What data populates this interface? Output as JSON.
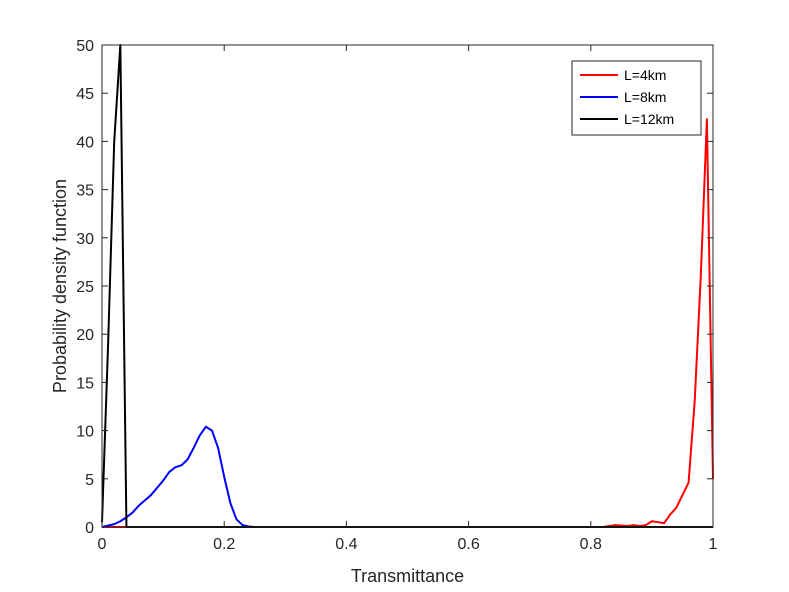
{
  "chart_data": {
    "type": "line",
    "xlabel": "Transmittance",
    "ylabel": "Probability density function",
    "xlim": [
      0,
      1
    ],
    "ylim": [
      0,
      50
    ],
    "xticks": [
      0,
      0.2,
      0.4,
      0.6,
      0.8,
      1
    ],
    "xtick_labels": [
      "0",
      "0.2",
      "0.4",
      "0.6",
      "0.8",
      "1"
    ],
    "yticks": [
      0,
      5,
      10,
      15,
      20,
      25,
      30,
      35,
      40,
      45,
      50
    ],
    "ytick_labels": [
      "0",
      "5",
      "10",
      "15",
      "20",
      "25",
      "30",
      "35",
      "40",
      "45",
      "50"
    ],
    "grid": false,
    "box": true,
    "legend_position": "top-right",
    "series": [
      {
        "name": "L=4km",
        "color": "#ff0000",
        "x": [
          0,
          0.82,
          0.84,
          0.86,
          0.87,
          0.88,
          0.89,
          0.9,
          0.91,
          0.92,
          0.93,
          0.94,
          0.95,
          0.96,
          0.97,
          0.98,
          0.99,
          1.0
        ],
        "y": [
          0,
          0,
          0.2,
          0.1,
          0.2,
          0.1,
          0.2,
          0.6,
          0.5,
          0.4,
          1.3,
          2.0,
          3.3,
          4.6,
          13.0,
          26.0,
          42.3,
          5.0
        ]
      },
      {
        "name": "L=8km",
        "color": "#0000ff",
        "x": [
          0,
          0.02,
          0.03,
          0.04,
          0.05,
          0.06,
          0.08,
          0.1,
          0.11,
          0.12,
          0.13,
          0.14,
          0.15,
          0.16,
          0.17,
          0.18,
          0.19,
          0.2,
          0.21,
          0.22,
          0.23,
          0.24,
          0.25,
          1.0
        ],
        "y": [
          0,
          0.3,
          0.6,
          1.0,
          1.5,
          2.2,
          3.3,
          4.8,
          5.7,
          6.2,
          6.4,
          7.0,
          8.2,
          9.5,
          10.4,
          10.0,
          8.2,
          5.2,
          2.5,
          0.8,
          0.2,
          0.05,
          0,
          0
        ]
      },
      {
        "name": "L=12km",
        "color": "#000000",
        "x": [
          0,
          0.01,
          0.02,
          0.03,
          0.04,
          0.042,
          1.0
        ],
        "y": [
          0.5,
          19,
          40,
          50,
          0,
          0,
          0
        ]
      }
    ]
  }
}
